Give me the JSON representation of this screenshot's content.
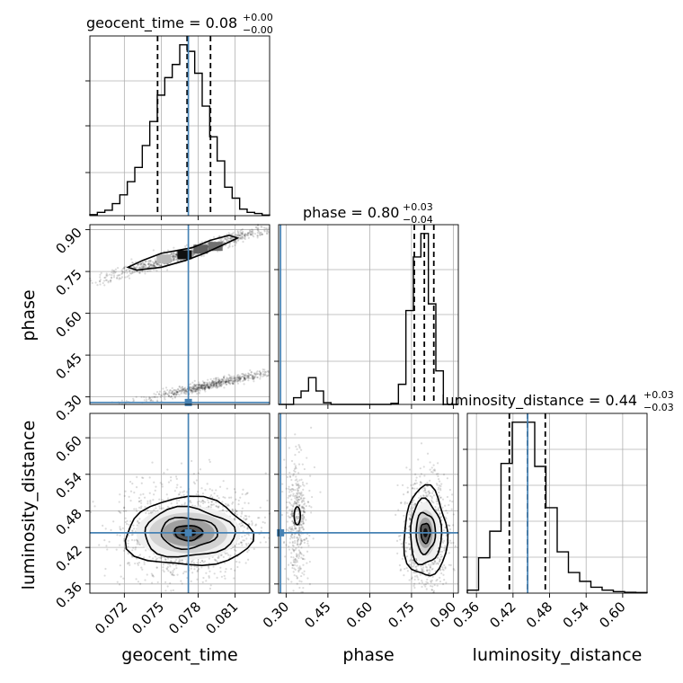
{
  "chart_data": {
    "type": "corner",
    "parameters": [
      "geocent_time",
      "phase",
      "luminosity_distance"
    ],
    "truths": {
      "geocent_time": 0.0772,
      "phase": 0.28,
      "luminosity_distance": 0.444
    },
    "titles": [
      {
        "param": "geocent_time",
        "label": "geocent_time = 0.08",
        "plus": "+0.00",
        "minus": "−0.00"
      },
      {
        "param": "phase",
        "label": "phase = 0.80",
        "plus": "+0.03",
        "minus": "−0.04"
      },
      {
        "param": "luminosity_distance",
        "label": "luminosity_distance = 0.44",
        "plus": "+0.03",
        "minus": "−0.03"
      }
    ],
    "axes": {
      "geocent_time": {
        "range": [
          0.0692,
          0.0838
        ],
        "ticks": [
          0.072,
          0.075,
          0.078,
          0.081
        ],
        "tick_labels": [
          "0.072",
          "0.075",
          "0.078",
          "0.081"
        ],
        "xlabel": "geocent_time"
      },
      "phase": {
        "range": [
          0.273,
          0.918
        ],
        "ticks": [
          0.3,
          0.45,
          0.6,
          0.75,
          0.9
        ],
        "tick_labels": [
          "0.30",
          "0.45",
          "0.60",
          "0.75",
          "0.90"
        ],
        "xlabel": "phase",
        "ylabel": "phase"
      },
      "luminosity_distance": {
        "range": [
          0.345,
          0.64
        ],
        "ticks": [
          0.36,
          0.42,
          0.48,
          0.54,
          0.6
        ],
        "tick_labels": [
          "0.36",
          "0.42",
          "0.48",
          "0.54",
          "0.60"
        ],
        "xlabel": "luminosity_distance",
        "ylabel": "luminosity_distance"
      },
      "luminosity_distance_hist_x": {
        "range": [
          0.345,
          0.64
        ],
        "ticks": [
          0.36,
          0.42,
          0.48,
          0.54,
          0.6
        ],
        "tick_labels": [
          "0.36",
          "0.42",
          "0.48",
          "0.54",
          "0.60"
        ]
      }
    },
    "histograms": {
      "geocent_time": {
        "bins": [
          0.0692,
          0.0838
        ],
        "counts": [
          0.5,
          1.5,
          2.5,
          5.5,
          9.5,
          15.5,
          22,
          32,
          43,
          55,
          63,
          69,
          78,
          75,
          65,
          50,
          36,
          25,
          13,
          8,
          3,
          1.5,
          1,
          0.3
        ],
        "quantiles": [
          0.0747,
          0.0771,
          0.079
        ]
      },
      "phase": {
        "bins": [
          0.273,
          0.918
        ],
        "counts": [
          0,
          0,
          2,
          4,
          8,
          4,
          0.5,
          0,
          0,
          0,
          0,
          0,
          0,
          0,
          0,
          0.3,
          6,
          28,
          44,
          51,
          30,
          10,
          0,
          0
        ],
        "quantiles": [
          0.76,
          0.796,
          0.83
        ]
      },
      "luminosity_distance": {
        "bins": [
          0.345,
          0.64
        ],
        "counts": [
          1,
          12,
          21,
          44,
          58,
          58,
          43,
          29,
          14,
          7,
          4,
          2,
          1,
          0.5,
          0.3,
          0.2
        ],
        "quantiles": [
          0.414,
          0.444,
          0.473
        ]
      }
    },
    "panels_2d": [
      {
        "x": "geocent_time",
        "y": "phase",
        "description": "two linear bands: upper band near phase 0.75-0.88, lower band near phase 0.28-0.40"
      },
      {
        "x": "geocent_time",
        "y": "luminosity_distance",
        "center": [
          0.0772,
          0.444
        ]
      },
      {
        "x": "phase",
        "y": "luminosity_distance",
        "centers": [
          [
            0.34,
            0.465
          ],
          [
            0.8,
            0.444
          ]
        ]
      }
    ]
  }
}
